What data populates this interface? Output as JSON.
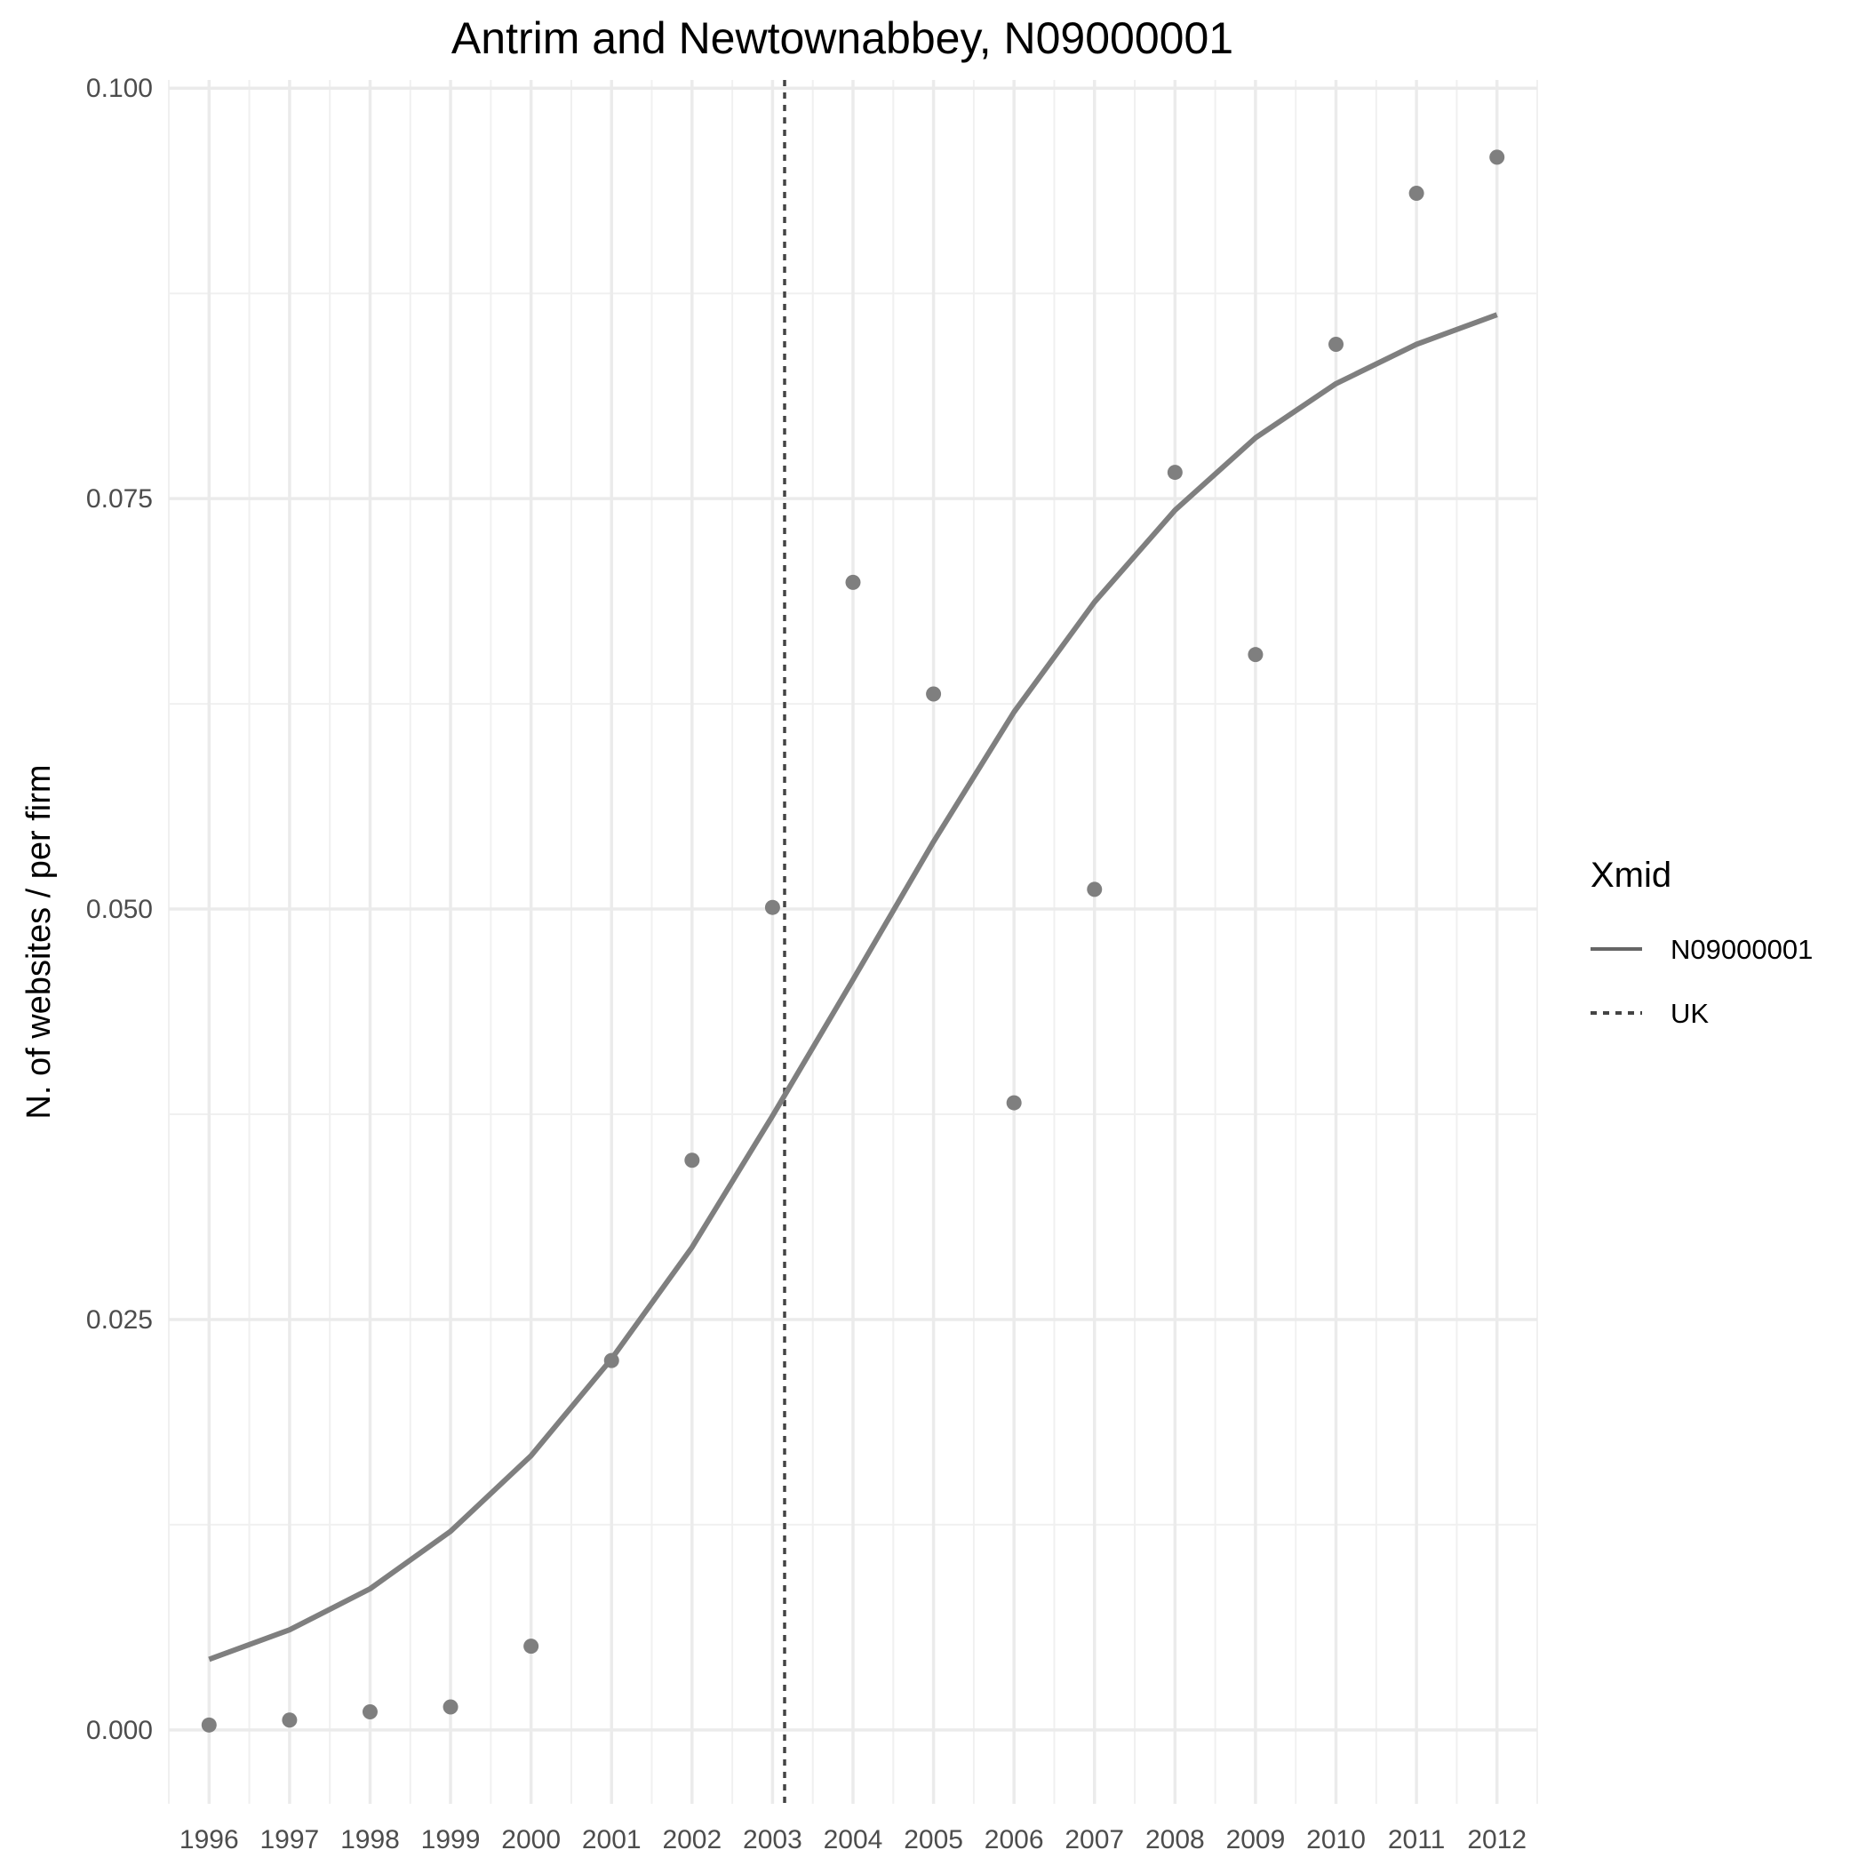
{
  "chart_data": {
    "type": "line",
    "title": "Antrim and Newtownabbey, N09000001",
    "xlabel": "",
    "ylabel": "N. of websites / per firm",
    "x": [
      1996,
      1997,
      1998,
      1999,
      2000,
      2001,
      2002,
      2003,
      2004,
      2005,
      2006,
      2007,
      2008,
      2009,
      2010,
      2011,
      2012
    ],
    "x_tick_labels": [
      "1996",
      "1997",
      "1998",
      "1999",
      "2000",
      "2001",
      "2002",
      "2003",
      "2004",
      "2005",
      "2006",
      "2007",
      "2008",
      "2009",
      "2010",
      "2011",
      "2012"
    ],
    "xlim": [
      1995.5,
      2012.5
    ],
    "ylim": [
      -0.0045,
      0.1005
    ],
    "y_ticks": [
      0.0,
      0.025,
      0.05,
      0.075,
      0.1
    ],
    "y_tick_labels": [
      "0.000",
      "0.025",
      "0.050",
      "0.075",
      "0.100"
    ],
    "grid": true,
    "series": [
      {
        "name": "N09000001",
        "kind": "line",
        "style": "solid",
        "color": "#7f7f7f",
        "values": [
          0.0043,
          0.0061,
          0.0086,
          0.0121,
          0.0167,
          0.0226,
          0.0294,
          0.0374,
          0.0457,
          0.0541,
          0.062,
          0.0687,
          0.0743,
          0.0787,
          0.082,
          0.0844,
          0.0862
        ]
      },
      {
        "kind": "points",
        "color": "#7f7f7f",
        "values": [
          0.0003,
          0.0006,
          0.0011,
          0.0014,
          0.0051,
          0.0225,
          0.0347,
          0.0501,
          0.0699,
          0.0631,
          0.0382,
          0.0512,
          0.0766,
          0.0655,
          0.0844,
          0.0936,
          0.0958
        ]
      }
    ],
    "reference_lines": [
      {
        "name": "UK",
        "orientation": "vertical",
        "x": 2003.15,
        "style": "dotted",
        "color": "#444444"
      }
    ],
    "legend": {
      "title": "Xmid",
      "position": "right",
      "entries": [
        {
          "label": "N09000001",
          "style": "solid"
        },
        {
          "label": "UK",
          "style": "dotted"
        }
      ]
    }
  }
}
